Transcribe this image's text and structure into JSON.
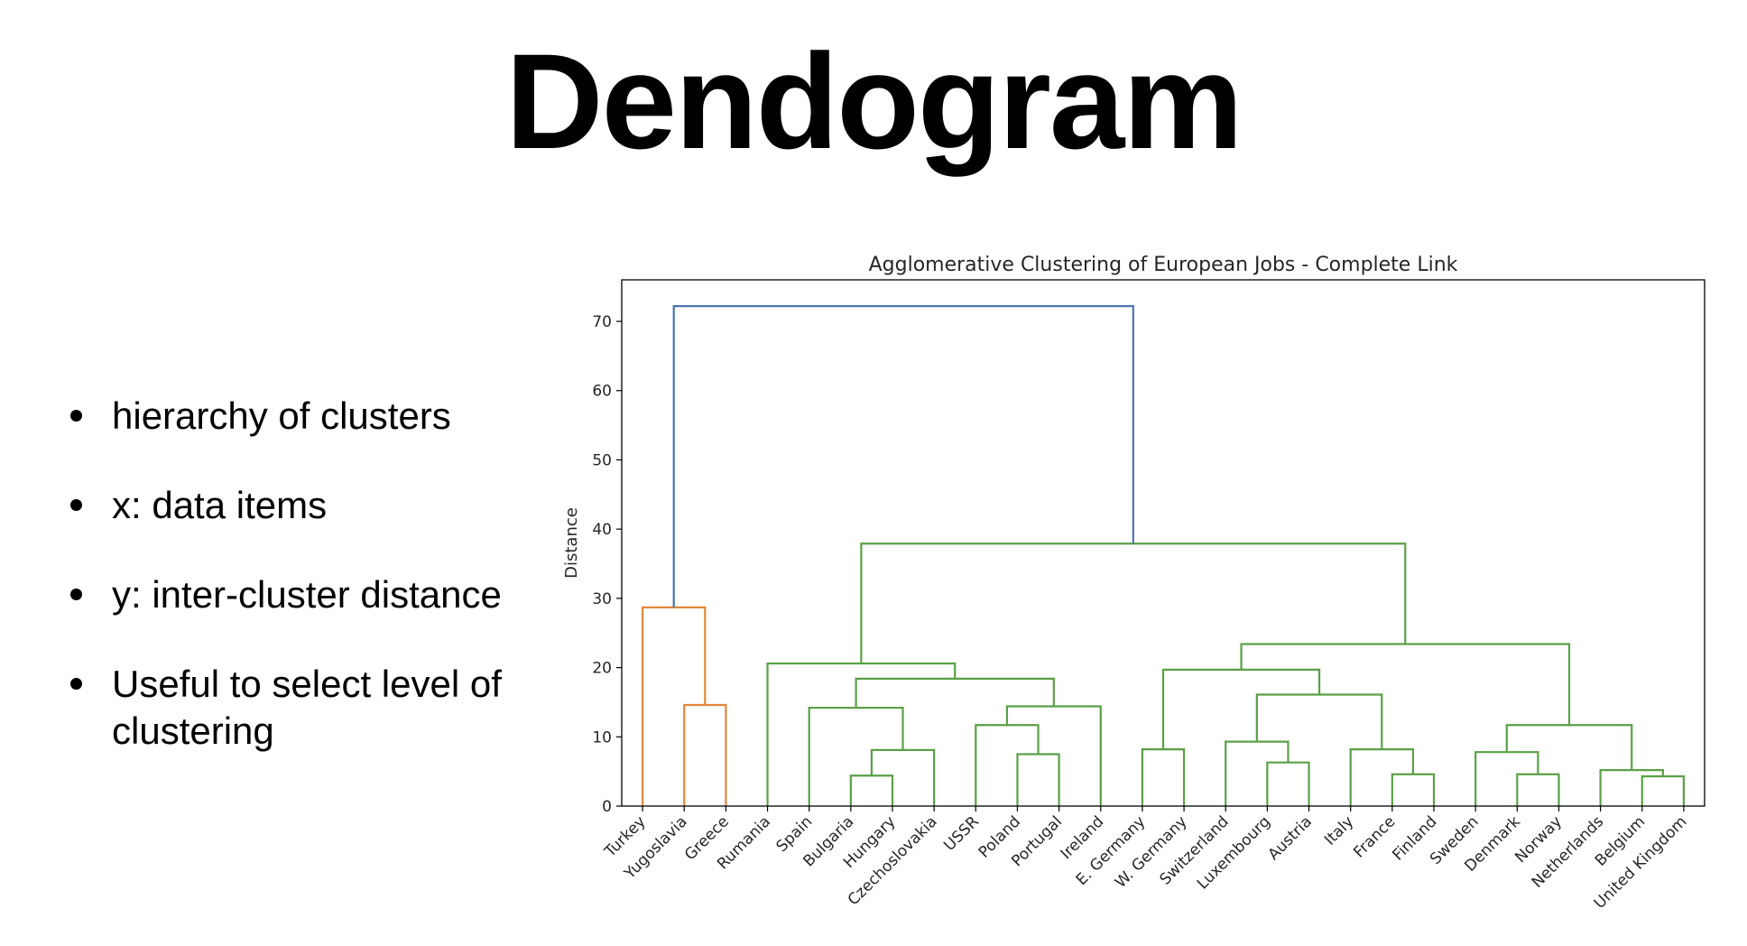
{
  "slide": {
    "title": "Dendogram",
    "bullets": [
      "hierarchy of clusters",
      "x: data items",
      "y: inter-cluster distance",
      "Useful to select level of clustering"
    ]
  },
  "chart_data": {
    "type": "dendrogram",
    "title": "Agglomerative Clustering of European Jobs - Complete Link",
    "xlabel": "",
    "ylabel": "Distance",
    "ylim": [
      0,
      76
    ],
    "yticks": [
      0,
      10,
      20,
      30,
      40,
      50,
      60,
      70
    ],
    "grid": false,
    "leaves": [
      "Turkey",
      "Yugoslavia",
      "Greece",
      "Rumania",
      "Spain",
      "Bulgaria",
      "Hungary",
      "Czechoslovakia",
      "USSR",
      "Poland",
      "Portugal",
      "Ireland",
      "E. Germany",
      "W. Germany",
      "Switzerland",
      "Luxembourg",
      "Austria",
      "Italy",
      "France",
      "Finland",
      "Sweden",
      "Denmark",
      "Norway",
      "Netherlands",
      "Belgium",
      "United Kingdom"
    ],
    "colors": {
      "cluster_1": "#e0883a",
      "cluster_2": "#5aa046",
      "root": "#4a76b0"
    },
    "merges": [
      {
        "left": "Yugoslavia",
        "right": "Greece",
        "height": 14.6,
        "color": "cluster_1"
      },
      {
        "left": "Turkey",
        "right": "Yugoslavia+Greece",
        "height": 28.7,
        "color": "cluster_1"
      },
      {
        "left": "Bulgaria",
        "right": "Hungary",
        "height": 4.4,
        "color": "cluster_2"
      },
      {
        "left": "Bulgaria+Hungary",
        "right": "Czechoslovakia",
        "height": 8.1,
        "color": "cluster_2"
      },
      {
        "left": "Spain",
        "right": "Bulgaria+Hungary+Czechoslovakia",
        "height": 14.2,
        "color": "cluster_2"
      },
      {
        "left": "Poland",
        "right": "Portugal",
        "height": 7.5,
        "color": "cluster_2"
      },
      {
        "left": "USSR",
        "right": "Poland+Portugal",
        "height": 11.7,
        "color": "cluster_2"
      },
      {
        "left": "USSR+Poland+Portugal",
        "right": "Ireland",
        "height": 14.4,
        "color": "cluster_2"
      },
      {
        "left": "Spain group",
        "right": "USSR group",
        "height": 18.4,
        "color": "cluster_2"
      },
      {
        "left": "Rumania",
        "right": "Spain+USSR groups",
        "height": 20.6,
        "color": "cluster_2"
      },
      {
        "left": "E. Germany",
        "right": "W. Germany",
        "height": 8.2,
        "color": "cluster_2"
      },
      {
        "left": "Luxembourg",
        "right": "Austria",
        "height": 6.3,
        "color": "cluster_2"
      },
      {
        "left": "Switzerland",
        "right": "Luxembourg+Austria",
        "height": 9.3,
        "color": "cluster_2"
      },
      {
        "left": "France",
        "right": "Finland",
        "height": 4.6,
        "color": "cluster_2"
      },
      {
        "left": "Italy",
        "right": "France+Finland",
        "height": 8.2,
        "color": "cluster_2"
      },
      {
        "left": "Switzerland group",
        "right": "Italy group",
        "height": 16.1,
        "color": "cluster_2"
      },
      {
        "left": "Germanies",
        "right": "Switzerland+Italy groups",
        "height": 19.7,
        "color": "cluster_2"
      },
      {
        "left": "Denmark",
        "right": "Norway",
        "height": 4.6,
        "color": "cluster_2"
      },
      {
        "left": "Sweden",
        "right": "Denmark+Norway",
        "height": 7.8,
        "color": "cluster_2"
      },
      {
        "left": "Belgium",
        "right": "United Kingdom",
        "height": 4.3,
        "color": "cluster_2"
      },
      {
        "left": "Netherlands",
        "right": "Belgium+United Kingdom",
        "height": 5.2,
        "color": "cluster_2"
      },
      {
        "left": "Sweden group",
        "right": "Netherlands group",
        "height": 11.7,
        "color": "cluster_2"
      },
      {
        "left": "Central group",
        "right": "Nordic/Benelux group",
        "height": 23.4,
        "color": "cluster_2"
      },
      {
        "left": "Eastern group",
        "right": "Western group",
        "height": 37.9,
        "color": "cluster_2"
      },
      {
        "left": "Turkey group",
        "right": "rest",
        "height": 72.2,
        "color": "root"
      }
    ]
  }
}
